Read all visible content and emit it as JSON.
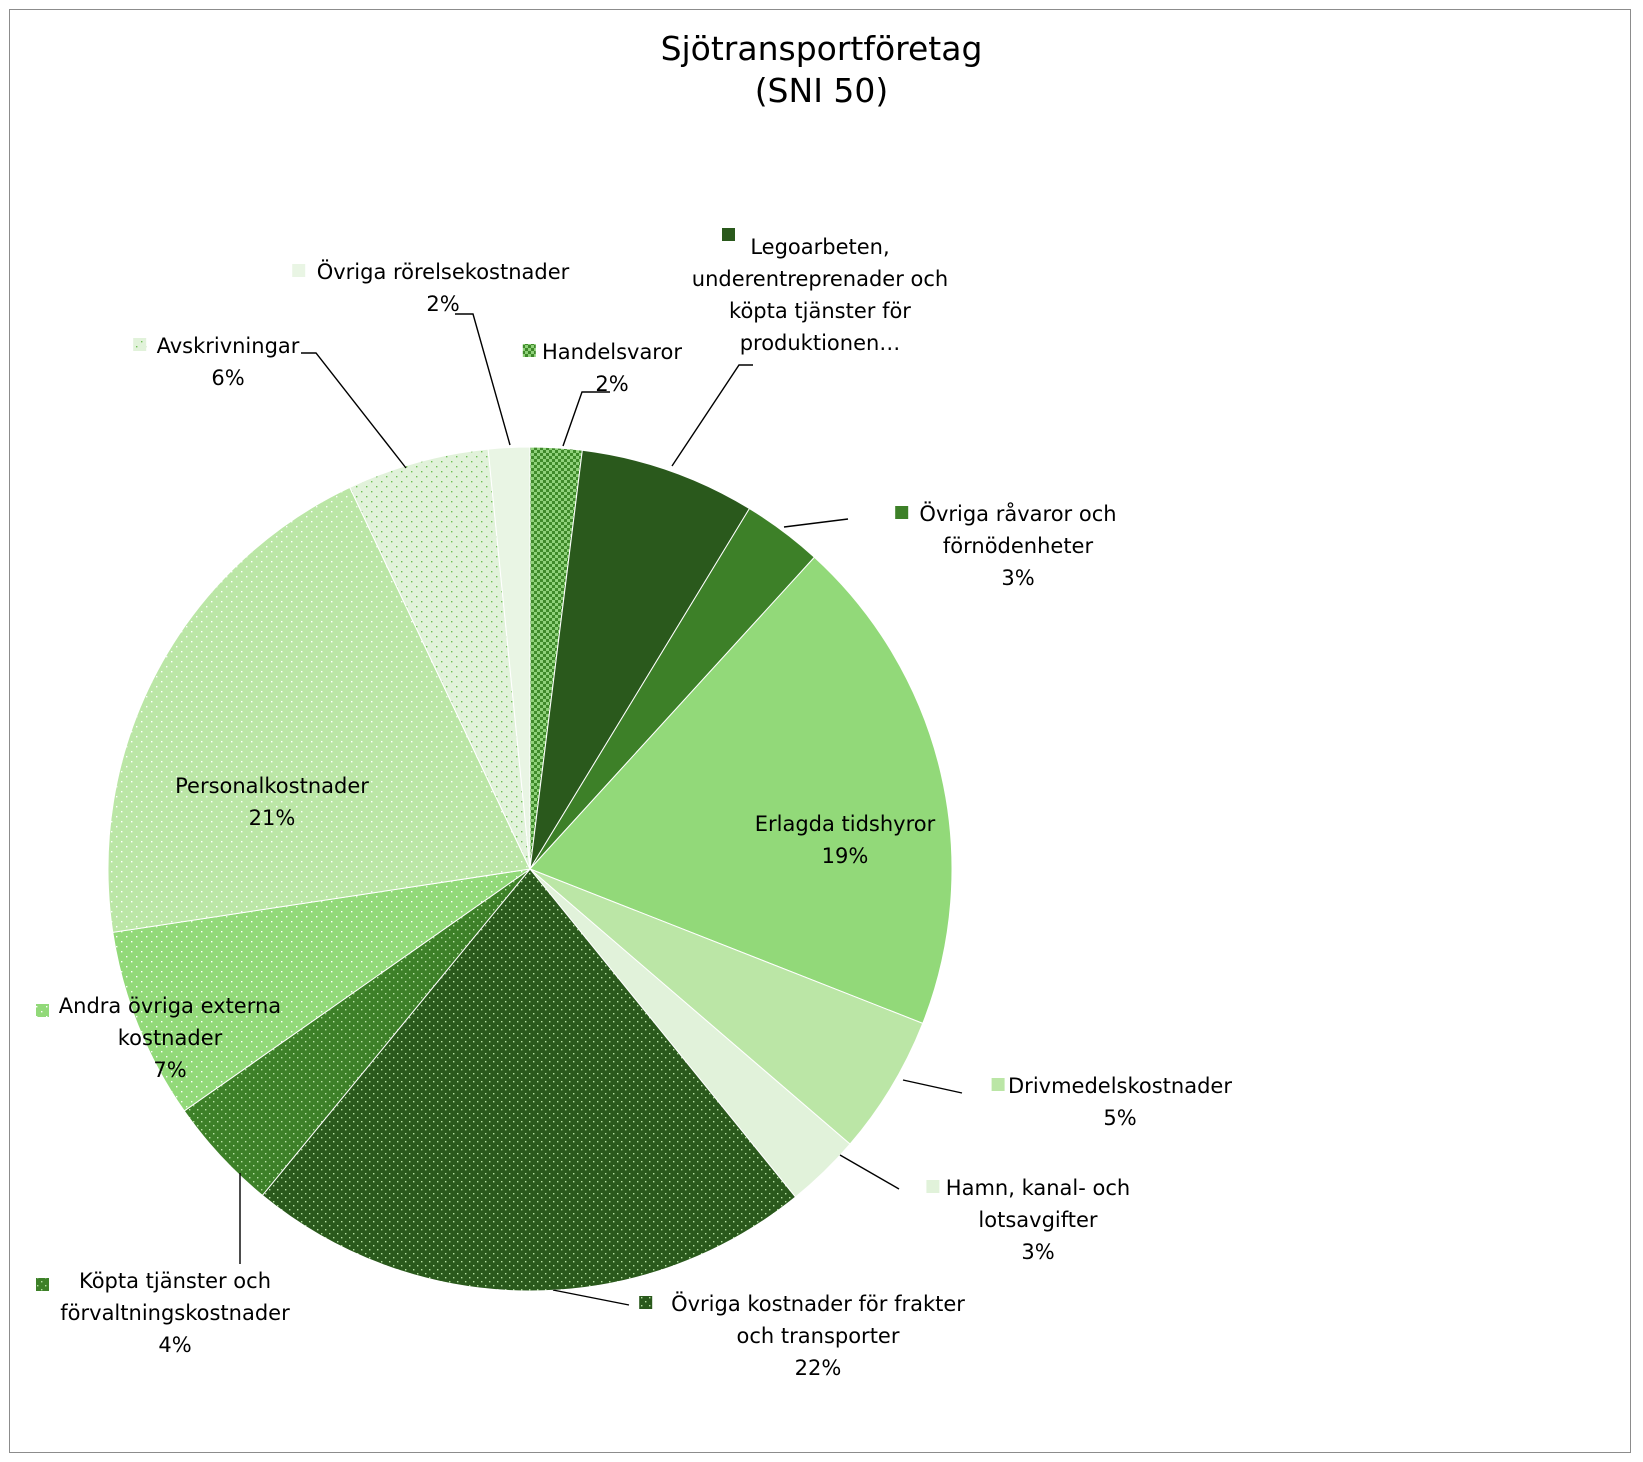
{
  "chart_data": {
    "type": "pie",
    "title": "Sjötransportföretag",
    "subtitle": "(SNI 50)",
    "legend": "none",
    "slices": [
      {
        "name": "Handelsvaror",
        "label_lines": [
          "Handelsvaror"
        ],
        "value_label": "2%",
        "value": 2.0,
        "color": "#3f8a2a",
        "pattern": "checker"
      },
      {
        "name": "Legoarbeten, underentreprenader och köpta tjänster för produktionen…",
        "label_lines": [
          "Legoarbeten,",
          "underentreprenader och",
          "köpta tjänster för",
          "produktionen…"
        ],
        "value_label": "",
        "value": 6.8,
        "color": "#2a591c",
        "pattern": "none"
      },
      {
        "name": "Övriga råvaror och förnödenheter",
        "label_lines": [
          "Övriga råvaror och",
          "förnödenheter"
        ],
        "value_label": "3%",
        "value": 3.1,
        "color": "#3d8028",
        "pattern": "none"
      },
      {
        "name": "Erlagda tidshyror",
        "label_lines": [
          "Erlagda tidshyror"
        ],
        "value_label": "19%",
        "value": 19.4,
        "color": "#92d979",
        "pattern": "none"
      },
      {
        "name": "Drivmedelskostnader",
        "label_lines": [
          "Drivmedelskostnader"
        ],
        "value_label": "5%",
        "value": 5.4,
        "color": "#bbe6a6",
        "pattern": "none"
      },
      {
        "name": "Hamn, kanal- och lotsavgifter",
        "label_lines": [
          "Hamn, kanal- och",
          "lotsavgifter"
        ],
        "value_label": "3%",
        "value": 2.9,
        "color": "#e1f2da",
        "pattern": "none"
      },
      {
        "name": "Övriga kostnader för frakter och transporter",
        "label_lines": [
          "Övriga kostnader för frakter",
          "och transporter"
        ],
        "value_label": "22%",
        "value": 22.0,
        "color": "#2a591c",
        "pattern": "dots-light"
      },
      {
        "name": "Köpta tjänster och förvaltningskostnader",
        "label_lines": [
          "Köpta tjänster och",
          "förvaltningskostnader"
        ],
        "value_label": "4%",
        "value": 4.4,
        "color": "#3d8028",
        "pattern": "dots-light"
      },
      {
        "name": "Andra övriga externa kostnader",
        "label_lines": [
          "Andra övriga externa",
          "kostnader"
        ],
        "value_label": "7%",
        "value": 7.4,
        "color": "#92d979",
        "pattern": "dots-white"
      },
      {
        "name": "Personalkostnader",
        "label_lines": [
          "Personalkostnader"
        ],
        "value_label": "21%",
        "value": 20.6,
        "color": "#bbe6a6",
        "pattern": "dots-white"
      },
      {
        "name": "Avskrivningar",
        "label_lines": [
          "Avskrivningar"
        ],
        "value_label": "6%",
        "value": 5.5,
        "color": "#e1f2da",
        "pattern": "dots-green"
      },
      {
        "name": "Övriga rörelsekostnader",
        "label_lines": [
          "Övriga rörelsekostnader"
        ],
        "value_label": "2%",
        "value": 1.6,
        "color": "#e9f5e4",
        "pattern": "none"
      }
    ]
  }
}
